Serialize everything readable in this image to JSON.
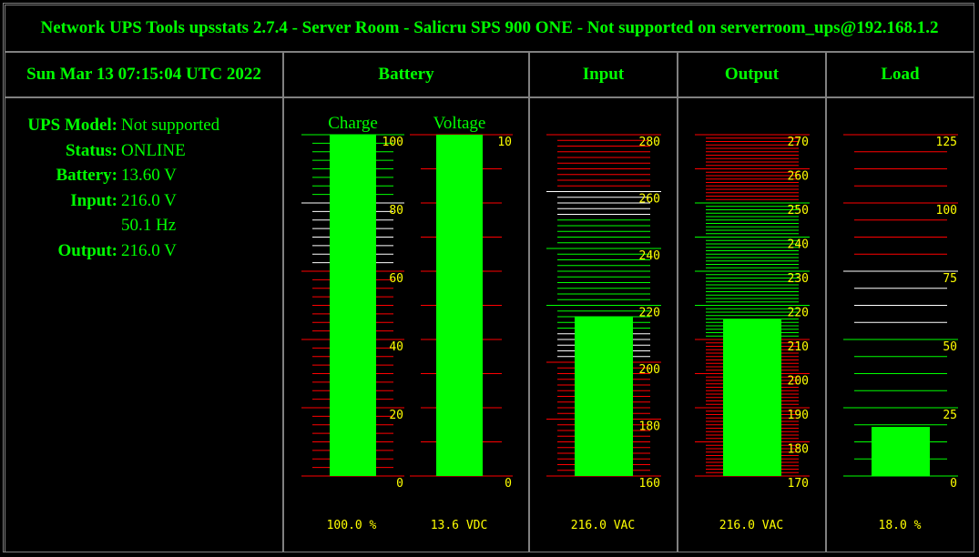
{
  "page_title": "Network UPS Tools upsstats 2.7.4 - Server Room - Salicru SPS 900 ONE - Not supported on serverroom_ups@192.168.1.2",
  "timestamp": "Sun Mar 13 07:15:04 UTC 2022",
  "headers": {
    "battery": "Battery",
    "input": "Input",
    "output": "Output",
    "load": "Load"
  },
  "info": [
    {
      "label": "UPS Model:",
      "value": "Not supported"
    },
    {
      "label": "Status:",
      "value": "ONLINE"
    },
    {
      "label": "Battery:",
      "value": "13.60 V"
    },
    {
      "label": "Input:",
      "value": "216.0 V"
    },
    {
      "label": "",
      "value": "50.1 Hz"
    },
    {
      "label": "Output:",
      "value": "216.0 V"
    }
  ],
  "colors": {
    "background": "#000000",
    "text": "#00ff00",
    "ticks": "#ffff00",
    "bar": "#00ff00",
    "danger": "#ff0000",
    "warning": "#ffffff",
    "ok": "#00ff00",
    "border": "#808080"
  },
  "gauges": [
    {
      "id": "charge",
      "sublabel": "Charge",
      "min": 0,
      "max": 100,
      "value": 100.0,
      "readout": "100.0 %",
      "ticks": [
        "0",
        "20",
        "40",
        "60",
        "80",
        "100"
      ],
      "zones": [
        {
          "from": 0,
          "to": 60,
          "color": "danger"
        },
        {
          "from": 60,
          "to": 80,
          "color": "warning"
        },
        {
          "from": 80,
          "to": 100,
          "color": "ok"
        }
      ]
    },
    {
      "id": "voltage",
      "sublabel": "Voltage",
      "min": 0,
      "max": 10,
      "value": 13.6,
      "readout": "13.6 VDC",
      "ticks": [
        "0",
        "10"
      ],
      "zones": [
        {
          "from": 0,
          "to": 10,
          "color": "danger"
        }
      ]
    },
    {
      "id": "input",
      "sublabel": "",
      "min": 160,
      "max": 280,
      "value": 216.0,
      "readout": "216.0 VAC",
      "ticks": [
        "160",
        "180",
        "200",
        "220",
        "240",
        "260",
        "280"
      ],
      "zones": [
        {
          "from": 160,
          "to": 200,
          "color": "danger"
        },
        {
          "from": 200,
          "to": 210,
          "color": "warning"
        },
        {
          "from": 210,
          "to": 250,
          "color": "ok"
        },
        {
          "from": 250,
          "to": 260,
          "color": "warning"
        },
        {
          "from": 260,
          "to": 280,
          "color": "danger"
        }
      ]
    },
    {
      "id": "output",
      "sublabel": "",
      "min": 170,
      "max": 270,
      "value": 216.0,
      "readout": "216.0 VAC",
      "ticks": [
        "170",
        "180",
        "190",
        "200",
        "210",
        "220",
        "230",
        "240",
        "250",
        "260",
        "270"
      ],
      "zones": [
        {
          "from": 170,
          "to": 210,
          "color": "danger"
        },
        {
          "from": 210,
          "to": 250,
          "color": "ok"
        },
        {
          "from": 250,
          "to": 270,
          "color": "danger"
        }
      ]
    },
    {
      "id": "load",
      "sublabel": "",
      "min": 0,
      "max": 125,
      "value": 18.0,
      "readout": "18.0 %",
      "ticks": [
        "0",
        "25",
        "50",
        "75",
        "100",
        "125"
      ],
      "zones": [
        {
          "from": 0,
          "to": 50,
          "color": "ok"
        },
        {
          "from": 50,
          "to": 75,
          "color": "warning"
        },
        {
          "from": 75,
          "to": 125,
          "color": "danger"
        }
      ]
    }
  ]
}
